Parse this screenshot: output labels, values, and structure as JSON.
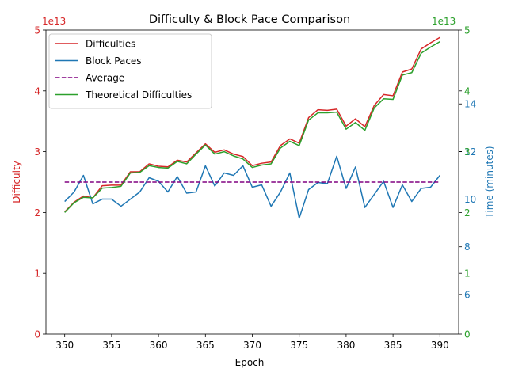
{
  "chart_data": {
    "type": "line",
    "title": "Difficulty & Block Pace Comparison",
    "xlabel": "Epoch",
    "x": [
      350,
      351,
      352,
      353,
      354,
      355,
      356,
      357,
      358,
      359,
      360,
      361,
      362,
      363,
      364,
      365,
      366,
      367,
      368,
      369,
      370,
      371,
      372,
      373,
      374,
      375,
      376,
      377,
      378,
      379,
      380,
      381,
      382,
      383,
      384,
      385,
      386,
      387,
      388,
      389,
      390
    ],
    "x_ticks": [
      350,
      355,
      360,
      365,
      370,
      375,
      380,
      385,
      390
    ],
    "xlim": [
      348.0,
      392.0
    ],
    "left_axis": {
      "label": "Difficulty",
      "color": "#d62728",
      "offset_text": "1e13",
      "ylim": [
        0,
        5
      ],
      "ticks": [
        0,
        1,
        2,
        3,
        4,
        5
      ],
      "tick_labels": [
        "0",
        "1",
        "2",
        "3",
        "4",
        "5"
      ]
    },
    "right_axis_inner": {
      "label": "Time (minutes)",
      "color": "#1f77b4",
      "ylim": [
        4.3333,
        17.1
      ],
      "ticks": [
        6,
        8,
        10,
        12,
        14
      ],
      "tick_labels": [
        "6",
        "8",
        "10",
        "12",
        "14"
      ]
    },
    "right_axis_outer": {
      "color": "#2ca02c",
      "offset_text": "1e13",
      "ylim": [
        0,
        5
      ],
      "ticks": [
        0,
        1,
        2,
        3,
        4,
        5
      ],
      "tick_labels": [
        "0",
        "1",
        "2",
        "3",
        "4",
        "5"
      ]
    },
    "legend": {
      "position": "upper-left",
      "entries": [
        "Difficulties",
        "Block Paces",
        "Average",
        "Theoretical Difficulties"
      ]
    },
    "series": [
      {
        "name": "Difficulties",
        "axis": "left",
        "color": "#d62728",
        "style": "solid",
        "values": [
          2.01,
          2.17,
          2.27,
          2.24,
          2.44,
          2.45,
          2.45,
          2.67,
          2.67,
          2.8,
          2.76,
          2.75,
          2.86,
          2.83,
          2.98,
          3.13,
          2.99,
          3.03,
          2.96,
          2.92,
          2.77,
          2.81,
          2.83,
          3.1,
          3.21,
          3.14,
          3.56,
          3.69,
          3.68,
          3.7,
          3.42,
          3.54,
          3.41,
          3.76,
          3.94,
          3.92,
          4.31,
          4.36,
          4.69,
          4.79,
          4.88
        ]
      },
      {
        "name": "Block Paces",
        "axis": "right_inner",
        "color": "#1f77b4",
        "style": "solid",
        "values": [
          9.9,
          10.3,
          11.0,
          9.8,
          10.0,
          10.0,
          9.7,
          10.0,
          10.3,
          10.9,
          10.75,
          10.3,
          10.95,
          10.25,
          10.3,
          11.4,
          10.55,
          11.1,
          11.0,
          11.4,
          10.5,
          10.6,
          9.7,
          10.3,
          11.1,
          9.2,
          10.4,
          10.7,
          10.65,
          11.8,
          10.45,
          11.35,
          9.65,
          10.2,
          10.75,
          9.65,
          10.6,
          9.9,
          10.45,
          10.5,
          11.0
        ]
      },
      {
        "name": "Average",
        "axis": "left",
        "color": "#800080",
        "style": "dashed",
        "values": [
          2.5,
          2.5,
          2.5,
          2.5,
          2.5,
          2.5,
          2.5,
          2.5,
          2.5,
          2.5,
          2.5,
          2.5,
          2.5,
          2.5,
          2.5,
          2.5,
          2.5,
          2.5,
          2.5,
          2.5,
          2.5,
          2.5,
          2.5,
          2.5,
          2.5,
          2.5,
          2.5,
          2.5,
          2.5,
          2.5,
          2.5,
          2.5,
          2.5,
          2.5,
          2.5,
          2.5,
          2.5,
          2.5,
          2.5,
          2.5,
          2.5
        ]
      },
      {
        "name": "Theoretical Difficulties",
        "axis": "right_outer",
        "color": "#2ca02c",
        "style": "solid",
        "values": [
          2.0,
          2.16,
          2.25,
          2.24,
          2.4,
          2.41,
          2.43,
          2.65,
          2.66,
          2.77,
          2.74,
          2.73,
          2.84,
          2.8,
          2.96,
          3.11,
          2.96,
          3.0,
          2.93,
          2.88,
          2.74,
          2.78,
          2.8,
          3.06,
          3.17,
          3.1,
          3.52,
          3.64,
          3.64,
          3.65,
          3.37,
          3.48,
          3.35,
          3.72,
          3.87,
          3.86,
          4.26,
          4.3,
          4.62,
          4.72,
          4.81
        ]
      }
    ],
    "grid": false
  }
}
